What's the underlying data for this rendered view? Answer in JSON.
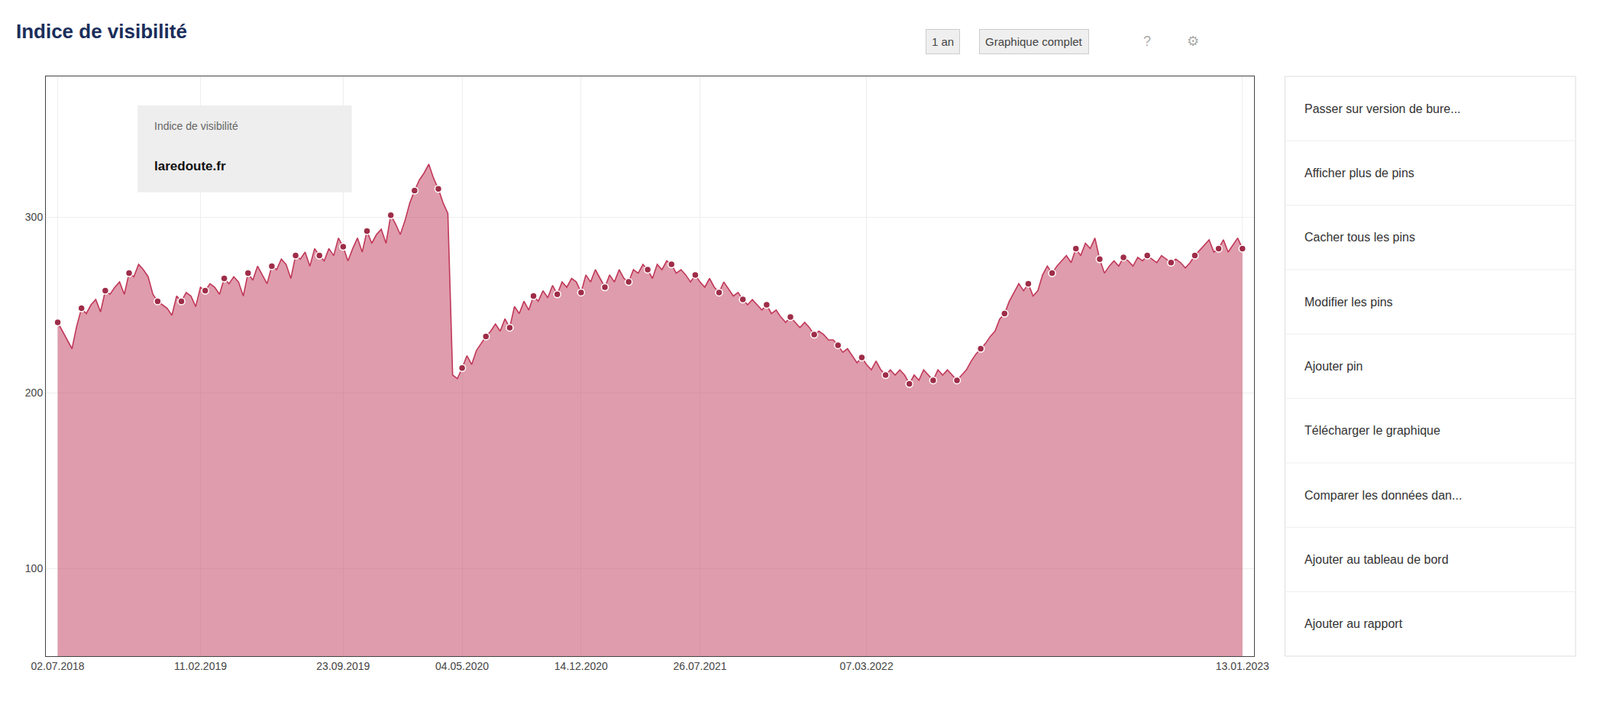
{
  "chart_data": {
    "type": "line",
    "title": "Indice de visibilité",
    "annotations": [
      "Indice de visibilité",
      "laredoute.fr",
      "1 an",
      "Graphique complet",
      "?",
      "⚙",
      "Passer sur version de bure...",
      "Afficher plus de pins",
      "Cacher tous les pins",
      "Modifier les pins",
      "Ajouter pin",
      "Télécharger le graphique",
      "Comparer les données dan...",
      "Ajouter au tableau de bord",
      "Ajouter au rapport"
    ],
    "xlim": [
      -5,
      503
    ],
    "xticks": [
      {
        "value": 0,
        "label": "02.07.2018"
      },
      {
        "value": 60,
        "label": "11.02.2019"
      },
      {
        "value": 120,
        "label": "23.09.2019"
      },
      {
        "value": 170,
        "label": "04.05.2020"
      },
      {
        "value": 220,
        "label": "14.12.2020"
      },
      {
        "value": 270,
        "label": "26.07.2021"
      },
      {
        "value": 340,
        "label": "07.03.2022"
      },
      {
        "value": 498,
        "label": "13.01.2023"
      }
    ],
    "ylim": [
      50,
      380
    ],
    "yticks": [
      100,
      200,
      300
    ],
    "grid": true,
    "series": [
      {
        "type": "area",
        "color": "#c0395a",
        "x": [
          0,
          2,
          4,
          6,
          8,
          10,
          12,
          14,
          16,
          18,
          20,
          22,
          24,
          26,
          28,
          30,
          32,
          34,
          36,
          38,
          40,
          42,
          44,
          46,
          48,
          50,
          52,
          54,
          56,
          58,
          60,
          62,
          64,
          66,
          68,
          70,
          72,
          74,
          76,
          78,
          80,
          82,
          84,
          86,
          88,
          90,
          92,
          94,
          96,
          98,
          100,
          102,
          104,
          106,
          108,
          110,
          112,
          114,
          116,
          118,
          120,
          122,
          124,
          126,
          128,
          130,
          132,
          134,
          136,
          138,
          140,
          142,
          144,
          146,
          148,
          150,
          152,
          154,
          156,
          158,
          160,
          162,
          164,
          166,
          168,
          170,
          172,
          174,
          176,
          178,
          180,
          182,
          184,
          186,
          188,
          190,
          192,
          194,
          196,
          198,
          200,
          202,
          204,
          206,
          208,
          210,
          212,
          214,
          216,
          218,
          220,
          222,
          224,
          226,
          228,
          230,
          232,
          234,
          236,
          238,
          240,
          242,
          244,
          246,
          248,
          250,
          252,
          254,
          256,
          258,
          260,
          262,
          264,
          266,
          268,
          270,
          272,
          274,
          276,
          278,
          280,
          282,
          284,
          286,
          288,
          290,
          292,
          294,
          296,
          298,
          300,
          302,
          304,
          306,
          308,
          310,
          312,
          314,
          316,
          318,
          320,
          322,
          324,
          326,
          328,
          330,
          332,
          334,
          336,
          338,
          340,
          342,
          344,
          346,
          348,
          350,
          352,
          354,
          356,
          358,
          360,
          362,
          364,
          366,
          368,
          370,
          372,
          374,
          376,
          378,
          380,
          382,
          384,
          386,
          388,
          390,
          392,
          394,
          396,
          398,
          400,
          402,
          404,
          406,
          408,
          410,
          412,
          414,
          416,
          418,
          420,
          422,
          424,
          426,
          428,
          430,
          432,
          434,
          436,
          438,
          440,
          442,
          444,
          446,
          448,
          450,
          452,
          454,
          456,
          458,
          460,
          462,
          464,
          466,
          468,
          470,
          472,
          474,
          476,
          478,
          480,
          482,
          484,
          486,
          488,
          490,
          492,
          494,
          496,
          498
        ],
        "values": [
          240,
          235,
          230,
          225,
          238,
          248,
          245,
          250,
          253,
          246,
          258,
          256,
          260,
          263,
          256,
          268,
          266,
          273,
          270,
          266,
          256,
          252,
          250,
          248,
          244,
          255,
          252,
          257,
          255,
          249,
          260,
          258,
          262,
          260,
          256,
          265,
          262,
          266,
          263,
          255,
          268,
          264,
          272,
          267,
          262,
          272,
          270,
          276,
          273,
          265,
          278,
          276,
          280,
          272,
          282,
          278,
          275,
          282,
          278,
          288,
          283,
          275,
          282,
          288,
          280,
          292,
          285,
          290,
          293,
          285,
          301,
          296,
          290,
          298,
          308,
          315,
          321,
          325,
          330,
          322,
          316,
          308,
          302,
          210,
          208,
          214,
          221,
          216,
          224,
          228,
          232,
          235,
          239,
          235,
          242,
          237,
          249,
          245,
          252,
          247,
          255,
          252,
          258,
          254,
          261,
          256,
          263,
          260,
          265,
          263,
          257,
          267,
          263,
          270,
          265,
          260,
          267,
          263,
          270,
          265,
          263,
          270,
          268,
          273,
          270,
          265,
          273,
          270,
          275,
          273,
          268,
          270,
          267,
          263,
          267,
          263,
          260,
          265,
          260,
          257,
          263,
          259,
          255,
          257,
          253,
          250,
          253,
          250,
          247,
          250,
          245,
          247,
          243,
          240,
          243,
          240,
          237,
          240,
          237,
          233,
          235,
          233,
          230,
          230,
          227,
          223,
          225,
          221,
          217,
          220,
          216,
          213,
          218,
          213,
          210,
          213,
          210,
          213,
          210,
          205,
          210,
          207,
          213,
          210,
          207,
          213,
          210,
          213,
          210,
          207,
          210,
          213,
          218,
          222,
          225,
          228,
          232,
          235,
          242,
          245,
          252,
          257,
          262,
          258,
          262,
          255,
          258,
          267,
          272,
          268,
          272,
          275,
          278,
          274,
          282,
          278,
          285,
          282,
          288,
          276,
          268,
          272,
          275,
          272,
          277,
          275,
          272,
          277,
          275,
          278,
          276,
          274,
          278,
          276,
          274,
          276,
          274,
          271,
          274,
          278,
          281,
          284,
          287,
          280,
          282,
          287,
          280,
          284,
          288,
          282
        ]
      },
      {
        "type": "scatter",
        "marker": "circle",
        "color": "#9e2d48",
        "x": [
          0,
          10,
          20,
          30,
          42,
          52,
          62,
          70,
          80,
          90,
          100,
          110,
          120,
          130,
          140,
          150,
          160,
          170,
          180,
          190,
          200,
          210,
          220,
          230,
          240,
          248,
          258,
          268,
          278,
          288,
          298,
          308,
          318,
          328,
          338,
          348,
          358,
          368,
          378,
          388,
          398,
          408,
          418,
          428,
          438,
          448,
          458,
          468,
          478,
          488,
          498
        ],
        "values": [
          240,
          248,
          258,
          268,
          252,
          252,
          258,
          265,
          268,
          272,
          278,
          278,
          283,
          292,
          301,
          315,
          316,
          214,
          232,
          237,
          255,
          256,
          257,
          260,
          263,
          270,
          273,
          267,
          257,
          253,
          250,
          243,
          233,
          227,
          220,
          210,
          205,
          207,
          207,
          225,
          245,
          262,
          268,
          282,
          276,
          277,
          278,
          274,
          278,
          282,
          282
        ]
      }
    ]
  }
}
